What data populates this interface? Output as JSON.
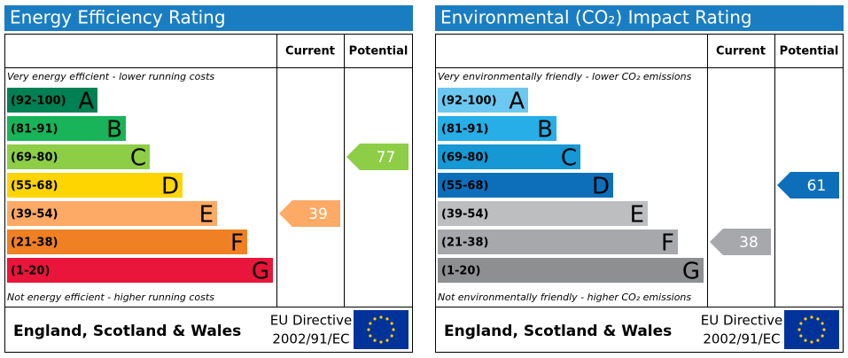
{
  "chart_data": [
    {
      "type": "epc",
      "title": "Energy Efficiency Rating",
      "headers": [
        "Current",
        "Potential"
      ],
      "top_note": "Very energy efficient - lower running costs",
      "bottom_note": "Not energy efficient - higher running costs",
      "bands": [
        {
          "range": "(92-100)",
          "letter": "A",
          "color": "#008054"
        },
        {
          "range": "(81-91)",
          "letter": "B",
          "color": "#19b459"
        },
        {
          "range": "(69-80)",
          "letter": "C",
          "color": "#8dce46"
        },
        {
          "range": "(55-68)",
          "letter": "D",
          "color": "#ffd500"
        },
        {
          "range": "(39-54)",
          "letter": "E",
          "color": "#fcaa65"
        },
        {
          "range": "(21-38)",
          "letter": "F",
          "color": "#ef8023"
        },
        {
          "range": "(1-20)",
          "letter": "G",
          "color": "#e9153b"
        }
      ],
      "current": 39,
      "potential": 77,
      "region": "England, Scotland & Wales",
      "directive": [
        "EU Directive",
        "2002/91/EC"
      ]
    },
    {
      "type": "epc",
      "title": "Environmental (CO₂) Impact Rating",
      "headers": [
        "Current",
        "Potential"
      ],
      "top_note": "Very environmentally friendly - lower CO₂ emissions",
      "bottom_note": "Not environmentally friendly - higher CO₂ emissions",
      "bands": [
        {
          "range": "(92-100)",
          "letter": "A",
          "color": "#6cc8f0"
        },
        {
          "range": "(81-91)",
          "letter": "B",
          "color": "#27aee6"
        },
        {
          "range": "(69-80)",
          "letter": "C",
          "color": "#1698d5"
        },
        {
          "range": "(55-68)",
          "letter": "D",
          "color": "#0d6fba"
        },
        {
          "range": "(39-54)",
          "letter": "E",
          "color": "#bcbec0"
        },
        {
          "range": "(21-38)",
          "letter": "F",
          "color": "#a6a8ab"
        },
        {
          "range": "(1-20)",
          "letter": "G",
          "color": "#8d8f91"
        }
      ],
      "current": 38,
      "potential": 61,
      "region": "England, Scotland & Wales",
      "directive": [
        "EU Directive",
        "2002/91/EC"
      ]
    }
  ]
}
